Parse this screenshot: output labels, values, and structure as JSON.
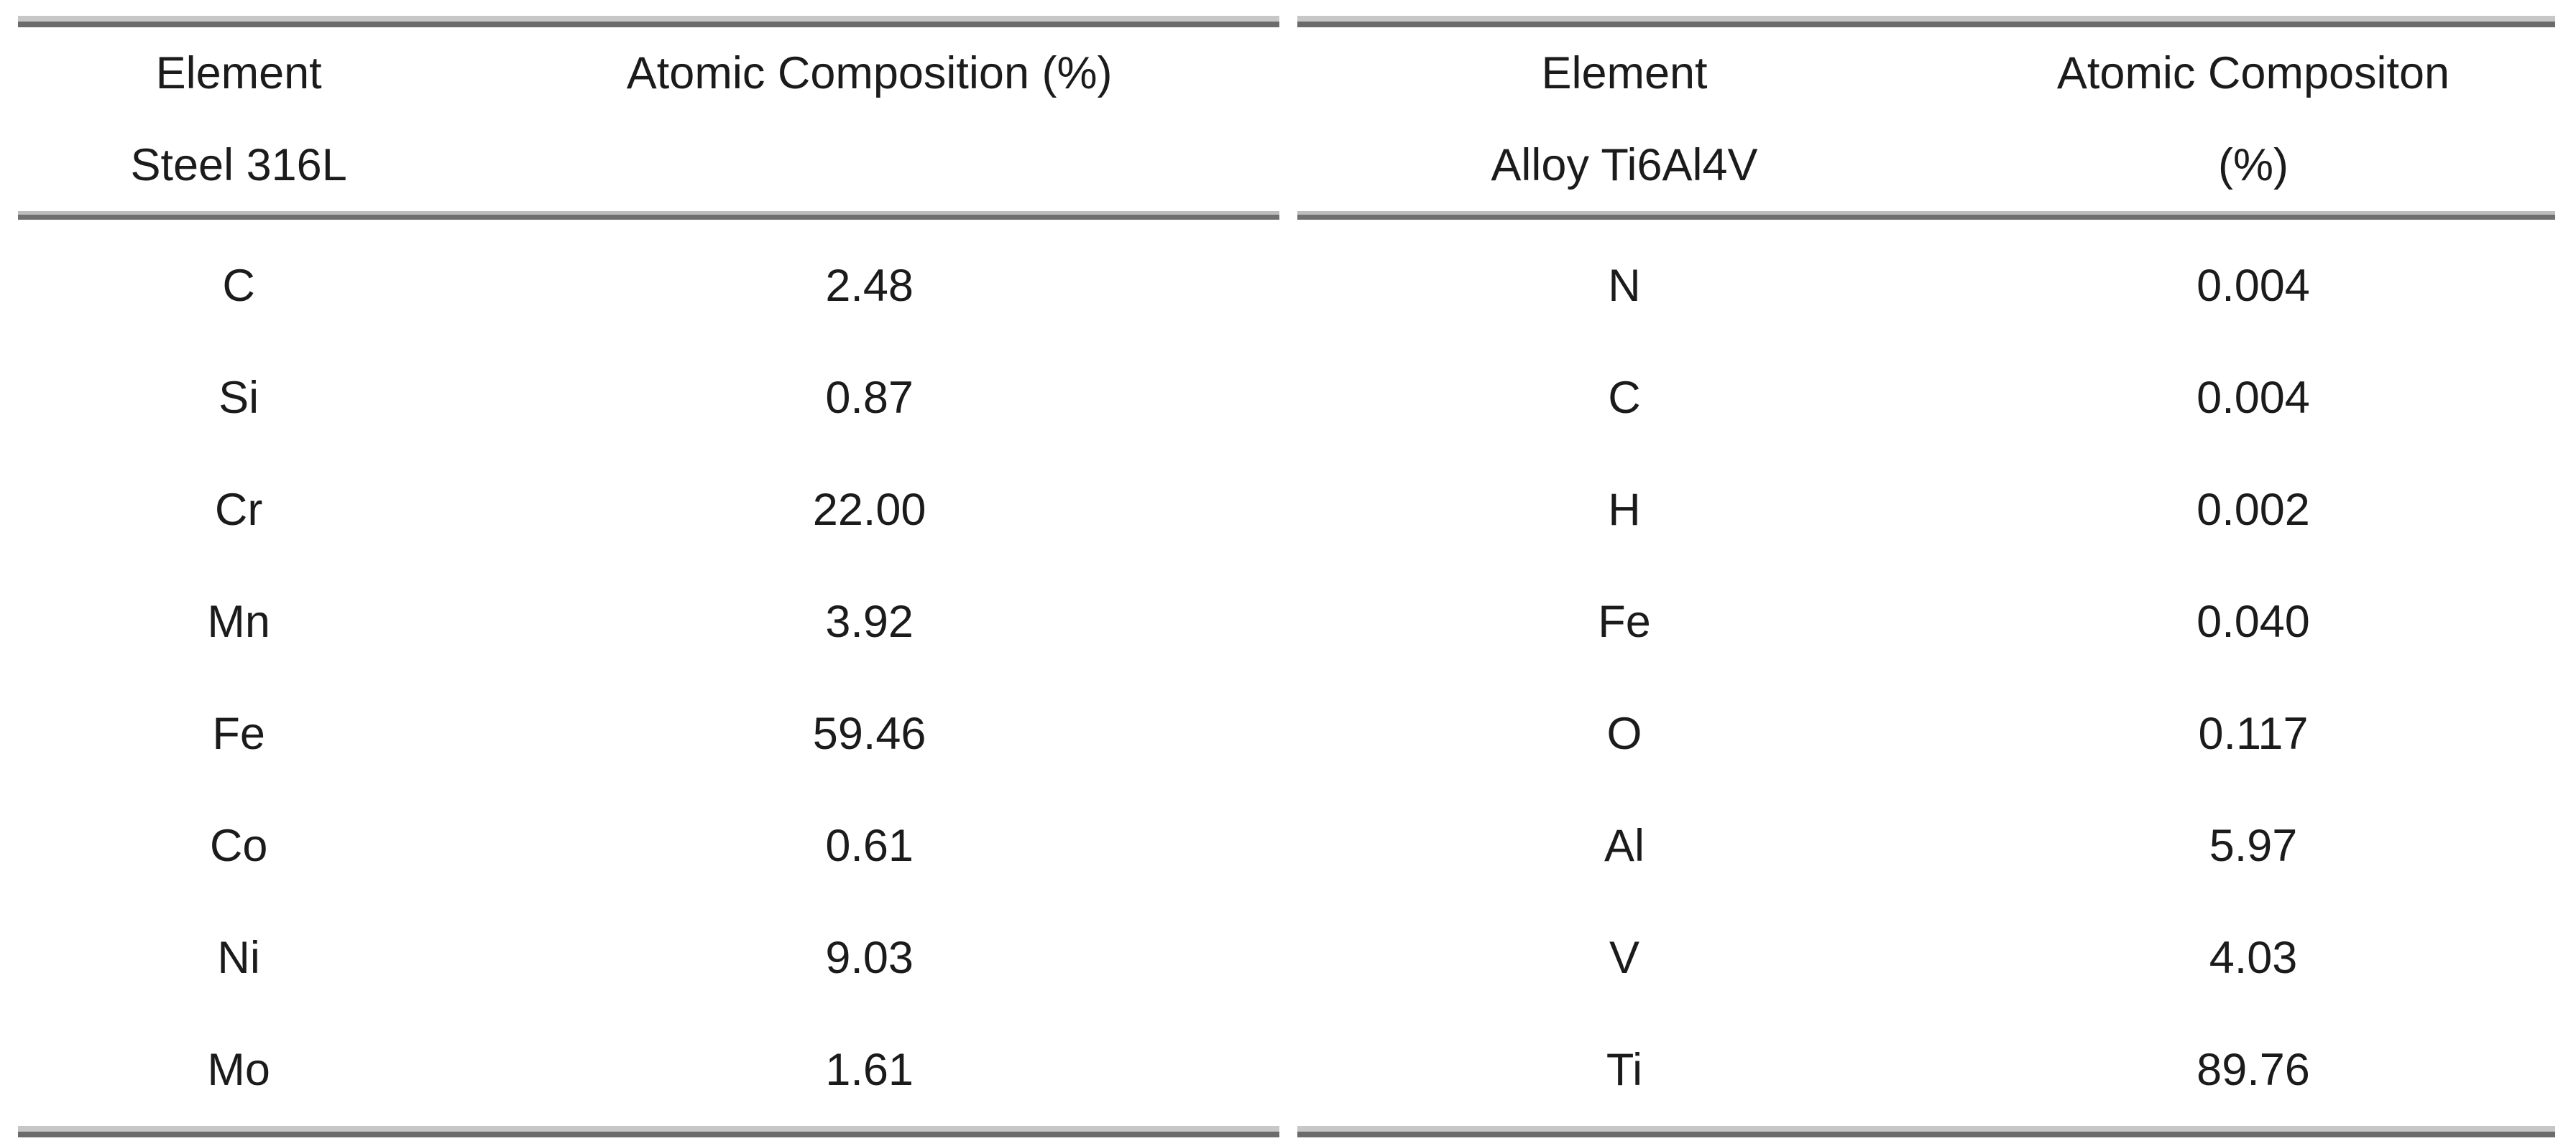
{
  "tables": [
    {
      "id": "steel-316l",
      "header": {
        "col1_line1": "Element",
        "col1_line2": "Steel 316L",
        "col2_line1": "Atomic Composition (%)",
        "col2_line2": ""
      },
      "rows": [
        [
          "C",
          "2.48"
        ],
        [
          "Si",
          "0.87"
        ],
        [
          "Cr",
          "22.00"
        ],
        [
          "Mn",
          "3.92"
        ],
        [
          "Fe",
          "59.46"
        ],
        [
          "Co",
          "0.61"
        ],
        [
          "Ni",
          "9.03"
        ],
        [
          "Mo",
          "1.61"
        ]
      ]
    },
    {
      "id": "alloy-ti6al4v",
      "header": {
        "col1_line1": "Element",
        "col1_line2": "Alloy Ti6Al4V",
        "col2_line1": "Atomic Compositon",
        "col2_line2": "(%)"
      },
      "rows": [
        [
          "N",
          "0.004"
        ],
        [
          "C",
          "0.004"
        ],
        [
          "H",
          "0.002"
        ],
        [
          "Fe",
          "0.040"
        ],
        [
          "O",
          "0.117"
        ],
        [
          "Al",
          "5.97"
        ],
        [
          "V",
          "4.03"
        ],
        [
          "Ti",
          "89.76"
        ]
      ]
    }
  ],
  "colors": {
    "text": "#1b1b1b",
    "rule_light": "#c7c7c7",
    "rule_dark": "#6b6b6b",
    "background": "#ffffff"
  }
}
